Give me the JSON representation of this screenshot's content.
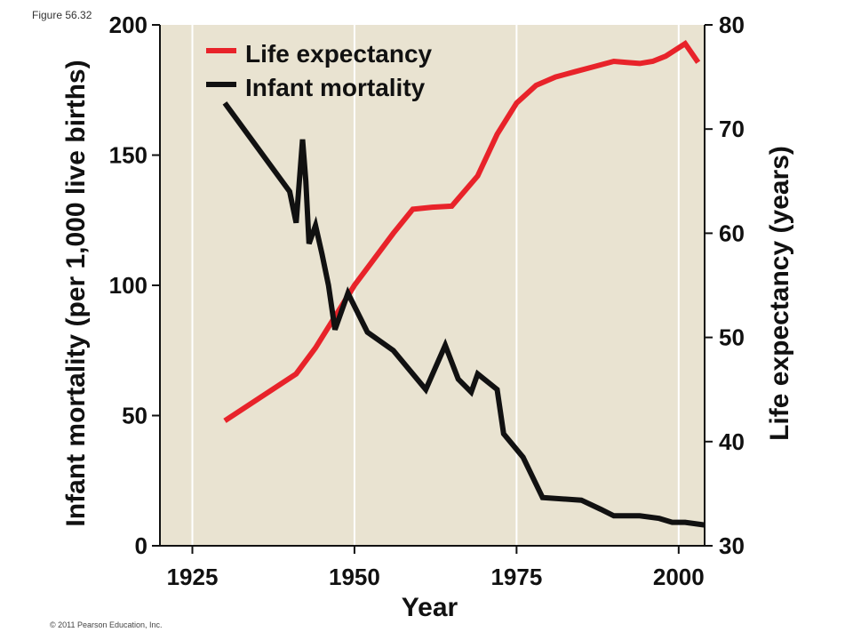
{
  "figure_label": "Figure 56.32",
  "copyright": "© 2011 Pearson Education, Inc.",
  "colors": {
    "plot_background": "#e9e3d1",
    "grid": "#ffffff",
    "life_expectancy": "#e8232a",
    "infant_mortality": "#111111"
  },
  "chart_data": {
    "type": "line",
    "title": "",
    "xlabel": "Year",
    "ylabel_left": "Infant mortality (per 1,000 live births)",
    "ylabel_right": "Life expectancy (years)",
    "xlim": [
      1920,
      2004
    ],
    "ylim_left": [
      0,
      200
    ],
    "ylim_right": [
      30,
      80
    ],
    "x_ticks": [
      1925,
      1950,
      1975,
      2000
    ],
    "y_ticks_left": [
      0,
      50,
      100,
      150,
      200
    ],
    "y_ticks_right": [
      30,
      40,
      50,
      60,
      70,
      80
    ],
    "grid": "vertical",
    "legend_position": "top-left",
    "series": [
      {
        "name": "Life expectancy",
        "axis": "right",
        "color": "#e8232a",
        "x": [
          1930,
          1941,
          1944,
          1947,
          1950,
          1953,
          1956,
          1959,
          1962,
          1965,
          1969,
          1972,
          1975,
          1978,
          1981,
          1984,
          1987,
          1990,
          1992,
          1994,
          1996,
          1998,
          2001,
          2003
        ],
        "y": [
          42,
          46.5,
          49,
          52,
          55,
          57.5,
          60,
          62.3,
          62.5,
          62.6,
          65.5,
          69.5,
          72.5,
          74.2,
          75,
          75.5,
          76,
          76.5,
          76.4,
          76.3,
          76.5,
          77,
          78.2,
          76.4
        ]
      },
      {
        "name": "Infant mortality",
        "axis": "left",
        "color": "#111111",
        "x": [
          1930,
          1940,
          1941,
          1942,
          1942.5,
          1943,
          1944,
          1945,
          1946,
          1947,
          1949,
          1952,
          1956,
          1961,
          1964,
          1966,
          1968,
          1969,
          1972,
          1973,
          1974,
          1976,
          1979,
          1985,
          1988,
          1990,
          1994,
          1997,
          1999,
          2001,
          2004
        ],
        "y": [
          170,
          136,
          124,
          156,
          140,
          116,
          123,
          112,
          100,
          83,
          97,
          82,
          75,
          60,
          77,
          64,
          59,
          66,
          60,
          43,
          40,
          34,
          18.5,
          17.5,
          14,
          11.5,
          11.5,
          10.5,
          9,
          9,
          8
        ]
      }
    ]
  }
}
